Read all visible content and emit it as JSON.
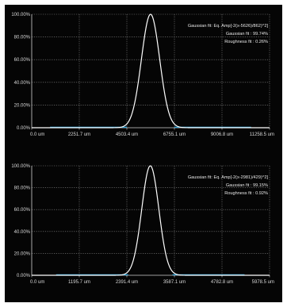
{
  "colors": {
    "background": "#050505",
    "grid": "#8a8a8a",
    "axis": "#d0d0d0",
    "curve": "#ffffff",
    "baseline": "#2aa7e0",
    "text": "#e0e0e0"
  },
  "chart_data": [
    {
      "type": "line",
      "title": "",
      "xlabel": "",
      "ylabel": "",
      "grid": true,
      "ylim": [
        0,
        100
      ],
      "xlim": [
        0,
        11258.5
      ],
      "x_ticks": [
        "0.0 um",
        "2251.7 um",
        "4503.4 um",
        "6755.1 um",
        "9006.8 um",
        "11258.5 um"
      ],
      "y_ticks": [
        "0.00%",
        "20.00%",
        "40.00%",
        "60.00%",
        "80.00%",
        "100.00%"
      ],
      "annotation": [
        "Gaussian fit: Eq. Amp[-2(x-5626)/862)^2]",
        "Gaussian fit : 99.74%",
        "Roughness fit : 0.26%"
      ],
      "series": [
        {
          "gaussian": {
            "center": 5626,
            "width": 862,
            "amplitude": 100
          }
        }
      ]
    },
    {
      "type": "line",
      "title": "",
      "xlabel": "",
      "ylabel": "",
      "grid": true,
      "ylim": [
        0,
        100
      ],
      "xlim": [
        0,
        5978.5
      ],
      "x_ticks": [
        "0.0 um",
        "1195.7 um",
        "2391.4 um",
        "3587.1 um",
        "4782.8 um",
        "5978.5 um"
      ],
      "y_ticks": [
        "0.00%",
        "20.00%",
        "40.00%",
        "60.00%",
        "80.00%",
        "100.00%"
      ],
      "annotation": [
        "Gaussian fit: Eq. Amp[-2(x-2981)/429)^2]",
        "Gaussian fit : 99.15%",
        "Roughness fit : 0.92%"
      ],
      "series": [
        {
          "gaussian": {
            "center": 2981,
            "width": 429,
            "amplitude": 100
          }
        }
      ]
    }
  ]
}
